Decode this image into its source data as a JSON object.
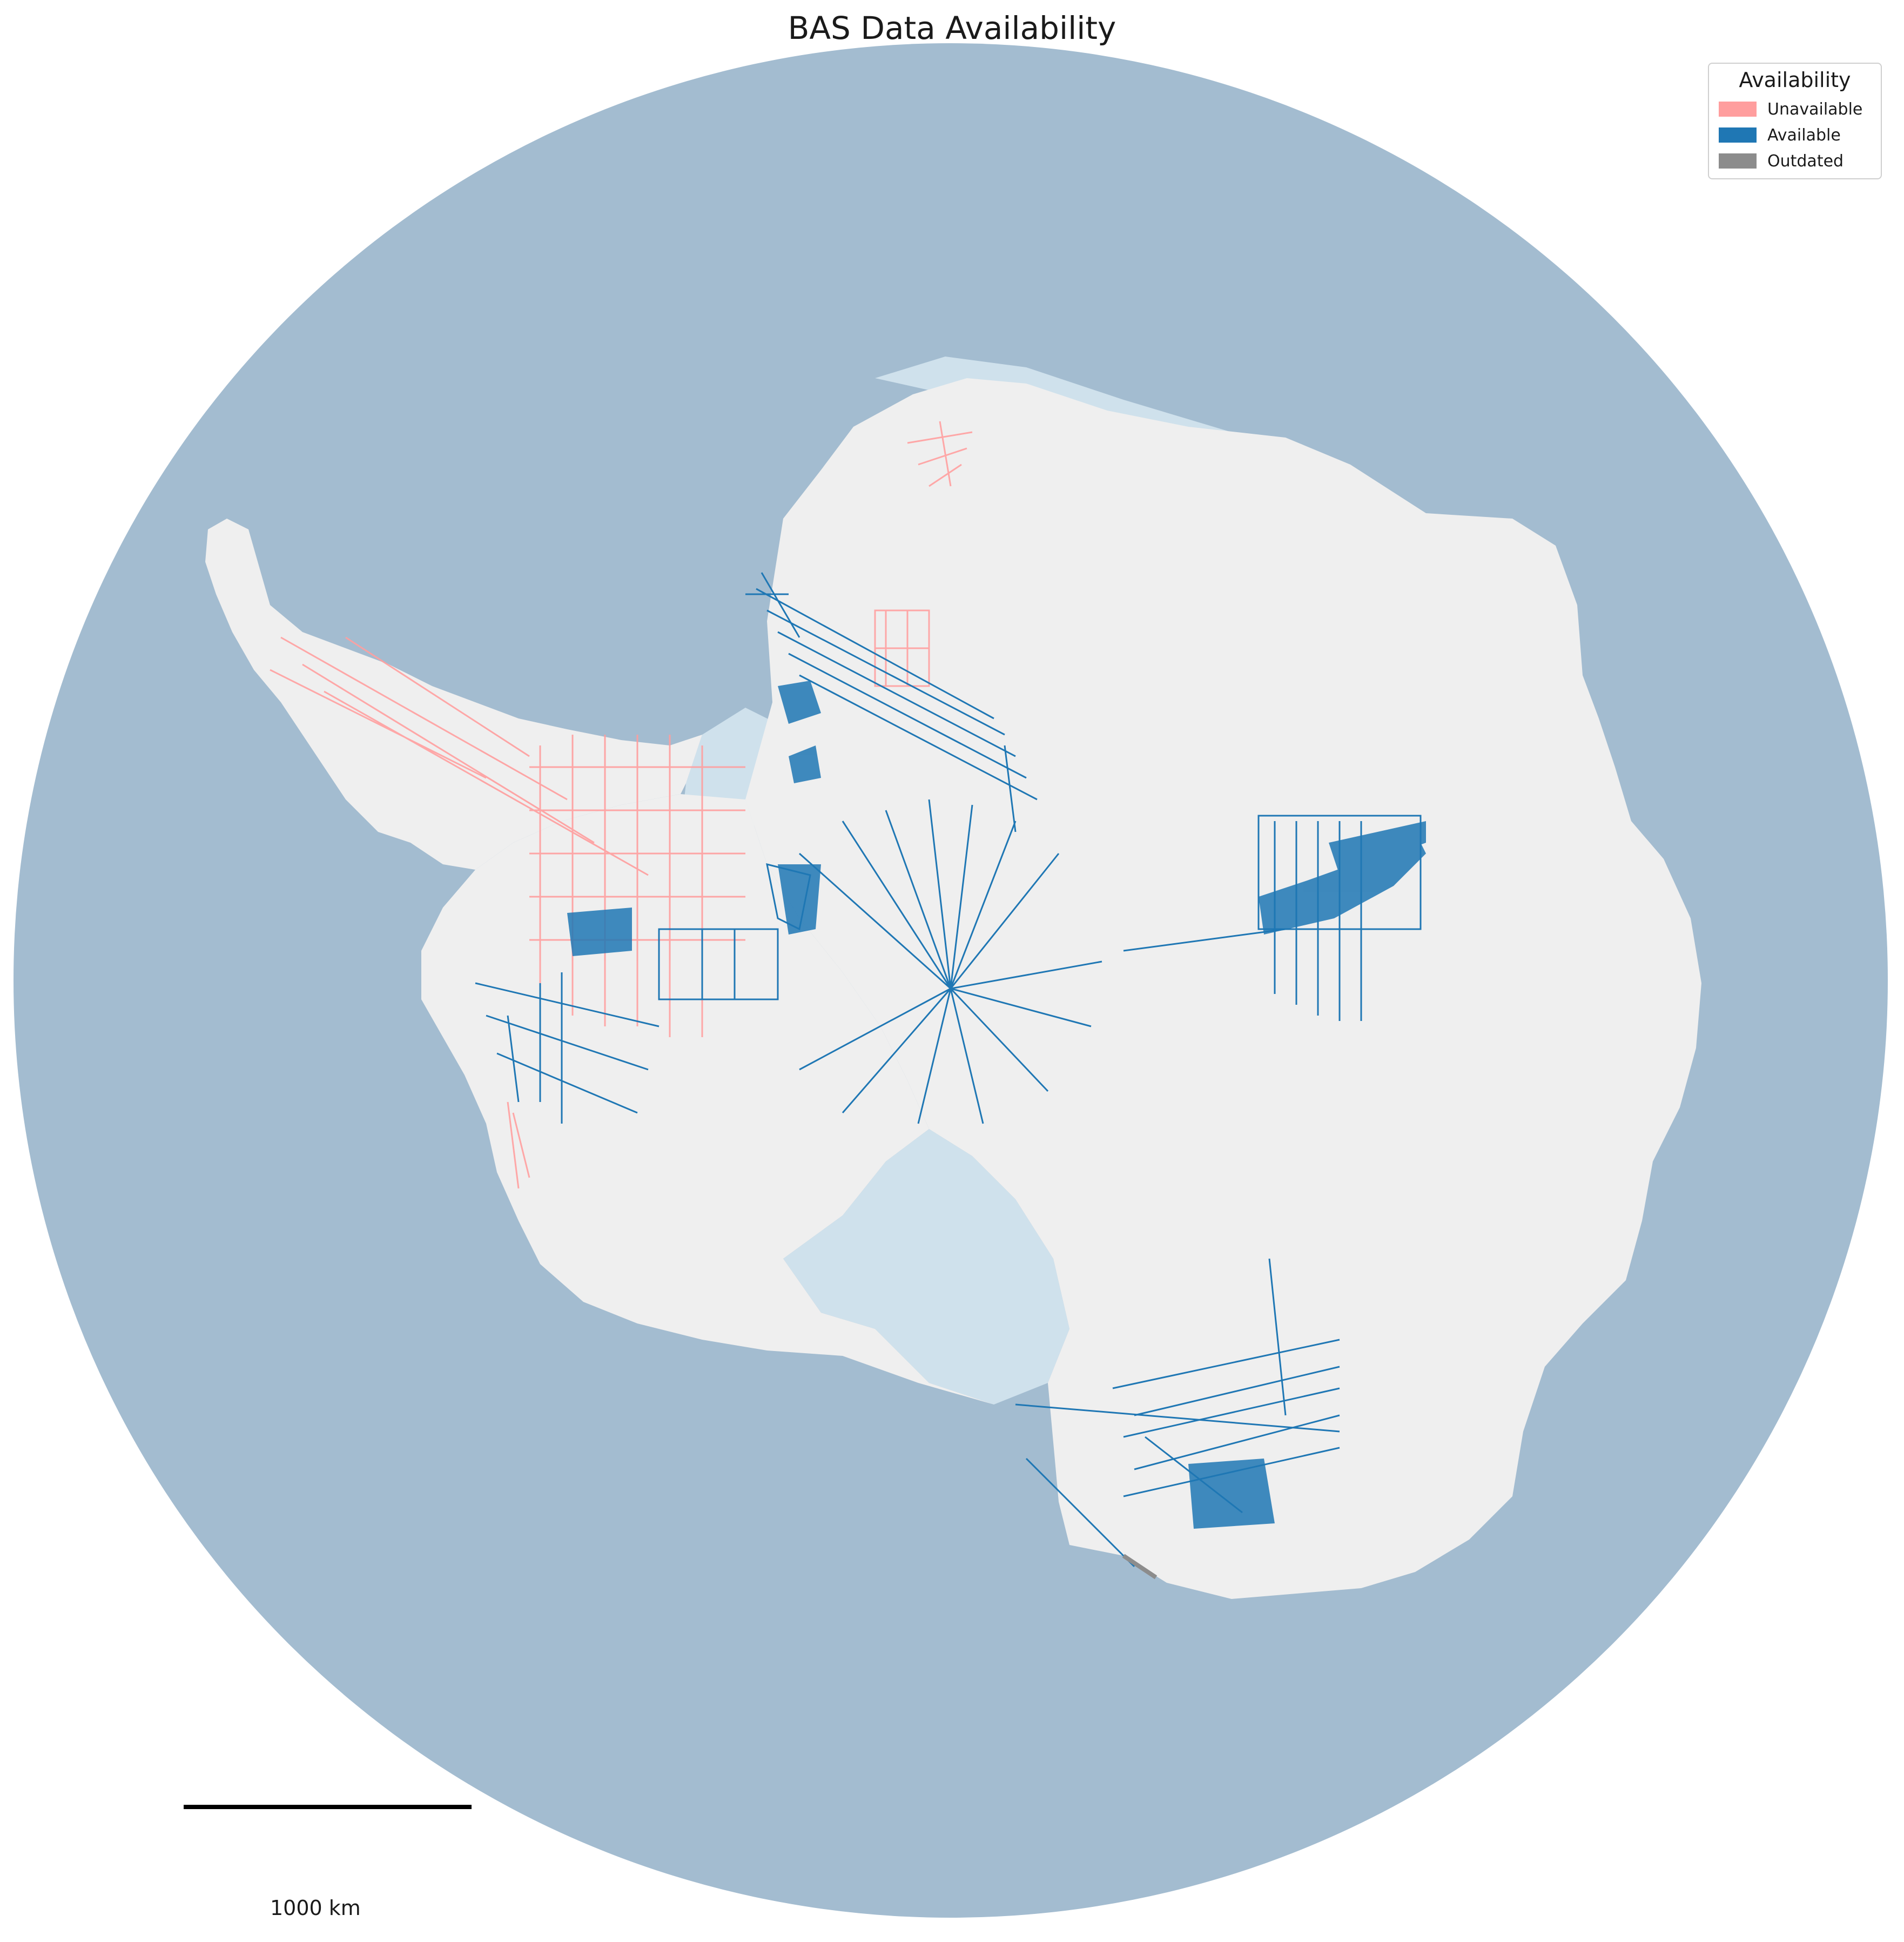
{
  "title": "BAS Data Availability",
  "legend": {
    "title": "Availability",
    "items": [
      {
        "label": "Unavailable",
        "color": "#ff9e9e"
      },
      {
        "label": "Available",
        "color": "#1f77b4"
      },
      {
        "label": "Outdated",
        "color": "#8c8c8c"
      }
    ]
  },
  "scale_bar": {
    "label": "1000 km"
  },
  "colors": {
    "ocean": "#a3bcd0",
    "land": "#efefef",
    "ice_shelf": "#cfe1ec",
    "available": "#1f77b4",
    "unavailable": "#ff9e9e",
    "outdated": "#8c8c8c"
  }
}
